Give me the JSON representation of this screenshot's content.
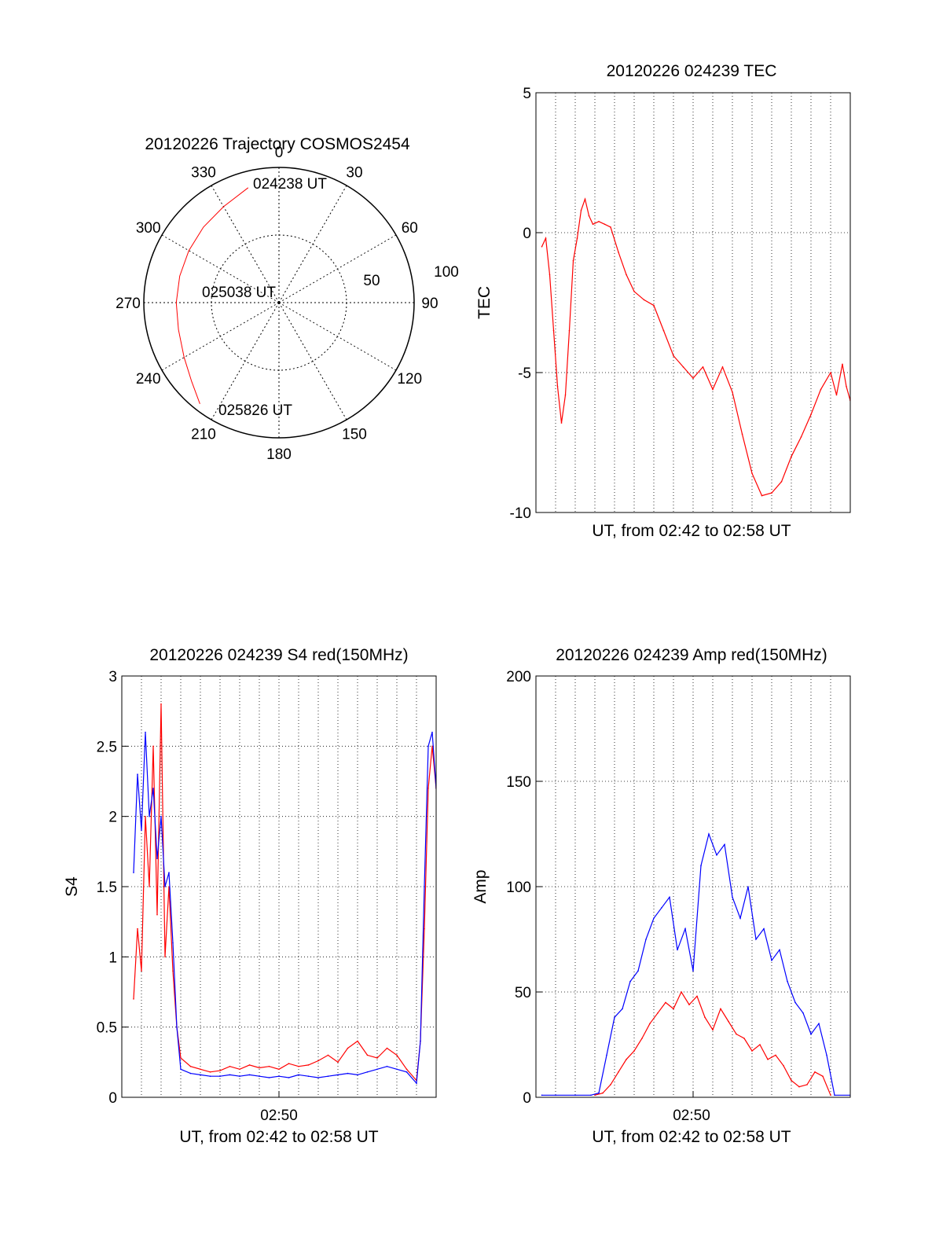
{
  "chart_data": [
    {
      "type": "polar",
      "title": "20120226 Trajectory COSMOS2454",
      "angle_labels": [
        "0",
        "30",
        "60",
        "90",
        "120",
        "150",
        "180",
        "210",
        "240",
        "270",
        "300",
        "330"
      ],
      "radius_labels": [
        "50",
        "100"
      ],
      "rlim": [
        0,
        100
      ],
      "start_label": "024238 UT",
      "mid_label": "025038 UT",
      "end_label": "025826 UT",
      "track_color": "#ff0000",
      "track": [
        {
          "az": 345,
          "r": 88
        },
        {
          "az": 330,
          "r": 82
        },
        {
          "az": 315,
          "r": 79
        },
        {
          "az": 300,
          "r": 77
        },
        {
          "az": 285,
          "r": 76
        },
        {
          "az": 270,
          "r": 76
        },
        {
          "az": 255,
          "r": 77
        },
        {
          "az": 240,
          "r": 81
        },
        {
          "az": 228,
          "r": 87
        },
        {
          "az": 218,
          "r": 95
        }
      ]
    },
    {
      "type": "line",
      "title": "20120226 024239 TEC",
      "xlabel": "UT, from 02:42 to 02:58 UT",
      "ylabel": "TEC",
      "ylim": [
        -10,
        5
      ],
      "yticks": [
        "5",
        "0",
        "-5",
        "-10"
      ],
      "xlim": [
        0,
        16
      ],
      "grid": true,
      "series": [
        {
          "color": "#ff0000",
          "x": [
            0.3,
            0.5,
            0.7,
            0.9,
            1.1,
            1.3,
            1.5,
            1.7,
            1.9,
            2.1,
            2.3,
            2.5,
            2.7,
            2.9,
            3.2,
            3.5,
            3.8,
            4.2,
            4.6,
            5.0,
            5.5,
            6.0,
            6.5,
            7.0,
            7.5,
            8.0,
            8.5,
            9.0,
            9.5,
            10.0,
            10.5,
            11.0,
            11.5,
            12.0,
            12.5,
            13.0,
            13.5,
            14.0,
            14.5,
            15.0,
            15.3,
            15.6,
            15.8,
            16.0
          ],
          "values": [
            -0.5,
            -0.2,
            -1.5,
            -3.5,
            -5.5,
            -6.8,
            -5.8,
            -3.5,
            -1.0,
            -0.2,
            0.8,
            1.2,
            0.6,
            0.3,
            0.4,
            0.3,
            0.2,
            -0.7,
            -1.5,
            -2.1,
            -2.4,
            -2.6,
            -3.5,
            -4.4,
            -4.8,
            -5.2,
            -4.8,
            -5.6,
            -4.8,
            -5.7,
            -7.2,
            -8.6,
            -9.4,
            -9.3,
            -8.9,
            -8.0,
            -7.3,
            -6.5,
            -5.6,
            -5.0,
            -5.8,
            -4.7,
            -5.5,
            -6.0
          ]
        }
      ]
    },
    {
      "type": "line",
      "title": "20120226 024239 S4 red(150MHz)",
      "xlabel": "UT, from 02:42 to 02:58 UT",
      "ylabel": "S4",
      "ylim": [
        0,
        3
      ],
      "yticks": [
        "0",
        "0.5",
        "1",
        "1.5",
        "2",
        "2.5",
        "3"
      ],
      "xtick_label": "02:50",
      "xtick_value": 8,
      "xlim": [
        0,
        16
      ],
      "grid": true,
      "series": [
        {
          "color": "#ff0000",
          "x": [
            0.6,
            0.8,
            1.0,
            1.2,
            1.4,
            1.6,
            1.8,
            2.0,
            2.2,
            2.4,
            2.6,
            2.8,
            3.0,
            3.5,
            4.0,
            4.5,
            5.0,
            5.5,
            6.0,
            6.5,
            7.0,
            7.5,
            8.0,
            8.5,
            9.0,
            9.5,
            10.0,
            10.5,
            11.0,
            11.5,
            12.0,
            12.5,
            13.0,
            13.5,
            14.0,
            14.5,
            15.0,
            15.2,
            15.4,
            15.6,
            15.8,
            16.0
          ],
          "values": [
            0.7,
            1.2,
            0.9,
            2.0,
            1.5,
            2.5,
            1.3,
            2.8,
            1.0,
            1.5,
            0.9,
            0.5,
            0.28,
            0.22,
            0.2,
            0.18,
            0.19,
            0.22,
            0.2,
            0.23,
            0.21,
            0.22,
            0.2,
            0.24,
            0.22,
            0.23,
            0.26,
            0.3,
            0.25,
            0.35,
            0.4,
            0.3,
            0.28,
            0.35,
            0.3,
            0.2,
            0.12,
            0.4,
            1.2,
            2.2,
            2.5,
            2.2
          ]
        },
        {
          "color": "#0000ff",
          "x": [
            0.6,
            0.8,
            1.0,
            1.2,
            1.4,
            1.6,
            1.8,
            2.0,
            2.2,
            2.4,
            2.6,
            2.8,
            3.0,
            3.5,
            4.0,
            4.5,
            5.0,
            5.5,
            6.0,
            6.5,
            7.0,
            7.5,
            8.0,
            8.5,
            9.0,
            9.5,
            10.0,
            10.5,
            11.0,
            11.5,
            12.0,
            12.5,
            13.0,
            13.5,
            14.0,
            14.5,
            15.0,
            15.2,
            15.4,
            15.6,
            15.8,
            16.0
          ],
          "values": [
            1.6,
            2.3,
            1.9,
            2.6,
            2.0,
            2.2,
            1.7,
            2.0,
            1.5,
            1.6,
            1.1,
            0.5,
            0.2,
            0.17,
            0.16,
            0.15,
            0.15,
            0.16,
            0.15,
            0.16,
            0.15,
            0.14,
            0.15,
            0.14,
            0.16,
            0.15,
            0.14,
            0.15,
            0.16,
            0.17,
            0.16,
            0.18,
            0.2,
            0.22,
            0.2,
            0.18,
            0.1,
            0.4,
            1.5,
            2.5,
            2.6,
            2.2
          ]
        }
      ]
    },
    {
      "type": "line",
      "title": "20120226 024239 Amp red(150MHz)",
      "xlabel": "UT, from 02:42 to 02:58 UT",
      "ylabel": "Amp",
      "ylim": [
        0,
        200
      ],
      "yticks": [
        "0",
        "50",
        "100",
        "150",
        "200"
      ],
      "xtick_label": "02:50",
      "xtick_value": 8,
      "xlim": [
        0,
        16
      ],
      "grid": true,
      "series": [
        {
          "color": "#ff0000",
          "x": [
            3.0,
            3.4,
            3.8,
            4.2,
            4.6,
            5.0,
            5.4,
            5.8,
            6.2,
            6.6,
            7.0,
            7.4,
            7.8,
            8.2,
            8.6,
            9.0,
            9.4,
            9.8,
            10.2,
            10.6,
            11.0,
            11.4,
            11.8,
            12.2,
            12.6,
            13.0,
            13.4,
            13.8,
            14.2,
            14.6,
            15.0
          ],
          "values": [
            1,
            2,
            6,
            12,
            18,
            22,
            28,
            35,
            40,
            45,
            42,
            50,
            44,
            48,
            38,
            32,
            42,
            36,
            30,
            28,
            22,
            25,
            18,
            20,
            15,
            8,
            5,
            6,
            12,
            10,
            1
          ]
        },
        {
          "color": "#0000ff",
          "x": [
            0.3,
            1.0,
            2.0,
            2.8,
            3.2,
            3.6,
            4.0,
            4.4,
            4.8,
            5.2,
            5.6,
            6.0,
            6.4,
            6.8,
            7.2,
            7.6,
            8.0,
            8.4,
            8.8,
            9.2,
            9.6,
            10.0,
            10.4,
            10.8,
            11.2,
            11.6,
            12.0,
            12.4,
            12.8,
            13.2,
            13.6,
            14.0,
            14.4,
            14.8,
            15.2,
            16.0
          ],
          "values": [
            1,
            1,
            1,
            1,
            2,
            20,
            38,
            42,
            55,
            60,
            75,
            85,
            90,
            95,
            70,
            80,
            60,
            110,
            125,
            115,
            120,
            95,
            85,
            100,
            75,
            80,
            65,
            70,
            55,
            45,
            40,
            30,
            35,
            20,
            1,
            1
          ]
        }
      ]
    }
  ]
}
